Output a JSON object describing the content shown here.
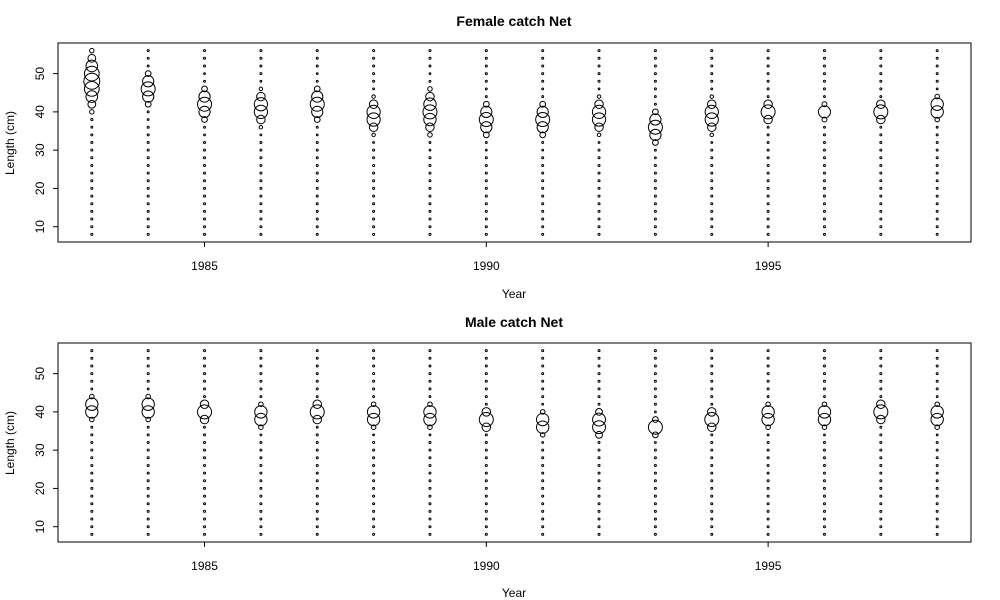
{
  "chart_data": [
    {
      "type": "scatter",
      "title": "Female catch Net",
      "xlabel": "Year",
      "ylabel": "Length (cm)",
      "xlim": [
        1982.4,
        1998.6
      ],
      "ylim": [
        6,
        58
      ],
      "x_ticks": [
        1985,
        1990,
        1995
      ],
      "y_ticks": [
        10,
        20,
        30,
        40,
        50
      ],
      "years": [
        1983,
        1984,
        1985,
        1986,
        1987,
        1988,
        1989,
        1990,
        1991,
        1992,
        1993,
        1994,
        1995,
        1996,
        1997,
        1998
      ],
      "length_bins": [
        8,
        10,
        12,
        14,
        16,
        18,
        20,
        22,
        24,
        26,
        28,
        30,
        32,
        34,
        36,
        38,
        40,
        42,
        44,
        46,
        48,
        50,
        52,
        54,
        56
      ],
      "peaks": [
        {
          "year": 1983,
          "center": 48,
          "spread": 5,
          "max_size": 8,
          "min_length": 8,
          "max_length": 56
        },
        {
          "year": 1984,
          "center": 46,
          "spread": 3,
          "max_size": 7,
          "min_length": 8,
          "max_length": 56
        },
        {
          "year": 1985,
          "center": 42,
          "spread": 3,
          "max_size": 7,
          "min_length": 8,
          "max_length": 56
        },
        {
          "year": 1986,
          "center": 41,
          "spread": 3,
          "max_size": 7,
          "min_length": 8,
          "max_length": 56
        },
        {
          "year": 1987,
          "center": 42,
          "spread": 3,
          "max_size": 7,
          "min_length": 8,
          "max_length": 56
        },
        {
          "year": 1988,
          "center": 39,
          "spread": 3,
          "max_size": 7,
          "min_length": 8,
          "max_length": 56
        },
        {
          "year": 1989,
          "center": 40,
          "spread": 4,
          "max_size": 7,
          "min_length": 8,
          "max_length": 56
        },
        {
          "year": 1990,
          "center": 38,
          "spread": 3,
          "max_size": 7,
          "min_length": 8,
          "max_length": 56
        },
        {
          "year": 1991,
          "center": 38,
          "spread": 3,
          "max_size": 7,
          "min_length": 8,
          "max_length": 56
        },
        {
          "year": 1992,
          "center": 39,
          "spread": 3,
          "max_size": 7,
          "min_length": 8,
          "max_length": 56
        },
        {
          "year": 1993,
          "center": 36,
          "spread": 3,
          "max_size": 7,
          "min_length": 8,
          "max_length": 56
        },
        {
          "year": 1994,
          "center": 39,
          "spread": 3,
          "max_size": 7,
          "min_length": 8,
          "max_length": 56
        },
        {
          "year": 1995,
          "center": 40,
          "spread": 2,
          "max_size": 7,
          "min_length": 8,
          "max_length": 56
        },
        {
          "year": 1996,
          "center": 40,
          "spread": 1.5,
          "max_size": 6,
          "min_length": 8,
          "max_length": 56
        },
        {
          "year": 1997,
          "center": 40,
          "spread": 2,
          "max_size": 7,
          "min_length": 8,
          "max_length": 56
        },
        {
          "year": 1998,
          "center": 41,
          "spread": 2,
          "max_size": 7,
          "min_length": 8,
          "max_length": 56
        }
      ]
    },
    {
      "type": "scatter",
      "title": "Male catch Net",
      "xlabel": "Year",
      "ylabel": "Length (cm)",
      "xlim": [
        1982.4,
        1998.6
      ],
      "ylim": [
        6,
        58
      ],
      "x_ticks": [
        1985,
        1990,
        1995
      ],
      "y_ticks": [
        10,
        20,
        30,
        40,
        50
      ],
      "years": [
        1983,
        1984,
        1985,
        1986,
        1987,
        1988,
        1989,
        1990,
        1991,
        1992,
        1993,
        1994,
        1995,
        1996,
        1997,
        1998
      ],
      "length_bins": [
        8,
        10,
        12,
        14,
        16,
        18,
        20,
        22,
        24,
        26,
        28,
        30,
        32,
        34,
        36,
        38,
        40,
        42,
        44,
        46,
        48,
        50,
        52,
        54,
        56
      ],
      "peaks": [
        {
          "year": 1983,
          "center": 41,
          "spread": 2,
          "max_size": 7,
          "min_length": 8,
          "max_length": 56
        },
        {
          "year": 1984,
          "center": 41,
          "spread": 2,
          "max_size": 7,
          "min_length": 8,
          "max_length": 56
        },
        {
          "year": 1985,
          "center": 40,
          "spread": 2,
          "max_size": 7,
          "min_length": 8,
          "max_length": 56
        },
        {
          "year": 1986,
          "center": 39,
          "spread": 2,
          "max_size": 7,
          "min_length": 8,
          "max_length": 56
        },
        {
          "year": 1987,
          "center": 40,
          "spread": 2,
          "max_size": 7,
          "min_length": 8,
          "max_length": 56
        },
        {
          "year": 1988,
          "center": 39,
          "spread": 2,
          "max_size": 7,
          "min_length": 8,
          "max_length": 56
        },
        {
          "year": 1989,
          "center": 39,
          "spread": 2,
          "max_size": 7,
          "min_length": 8,
          "max_length": 56
        },
        {
          "year": 1990,
          "center": 38,
          "spread": 2,
          "max_size": 7,
          "min_length": 8,
          "max_length": 56
        },
        {
          "year": 1991,
          "center": 37,
          "spread": 2,
          "max_size": 7,
          "min_length": 8,
          "max_length": 56
        },
        {
          "year": 1992,
          "center": 37,
          "spread": 2.5,
          "max_size": 7,
          "min_length": 8,
          "max_length": 56
        },
        {
          "year": 1993,
          "center": 36,
          "spread": 1.5,
          "max_size": 7,
          "min_length": 8,
          "max_length": 56
        },
        {
          "year": 1994,
          "center": 38,
          "spread": 2,
          "max_size": 7,
          "min_length": 8,
          "max_length": 56
        },
        {
          "year": 1995,
          "center": 39,
          "spread": 2,
          "max_size": 7,
          "min_length": 8,
          "max_length": 56
        },
        {
          "year": 1996,
          "center": 39,
          "spread": 2,
          "max_size": 7,
          "min_length": 8,
          "max_length": 56
        },
        {
          "year": 1997,
          "center": 40,
          "spread": 2,
          "max_size": 7,
          "min_length": 8,
          "max_length": 56
        },
        {
          "year": 1998,
          "center": 39,
          "spread": 2,
          "max_size": 7,
          "min_length": 8,
          "max_length": 56
        }
      ]
    }
  ]
}
